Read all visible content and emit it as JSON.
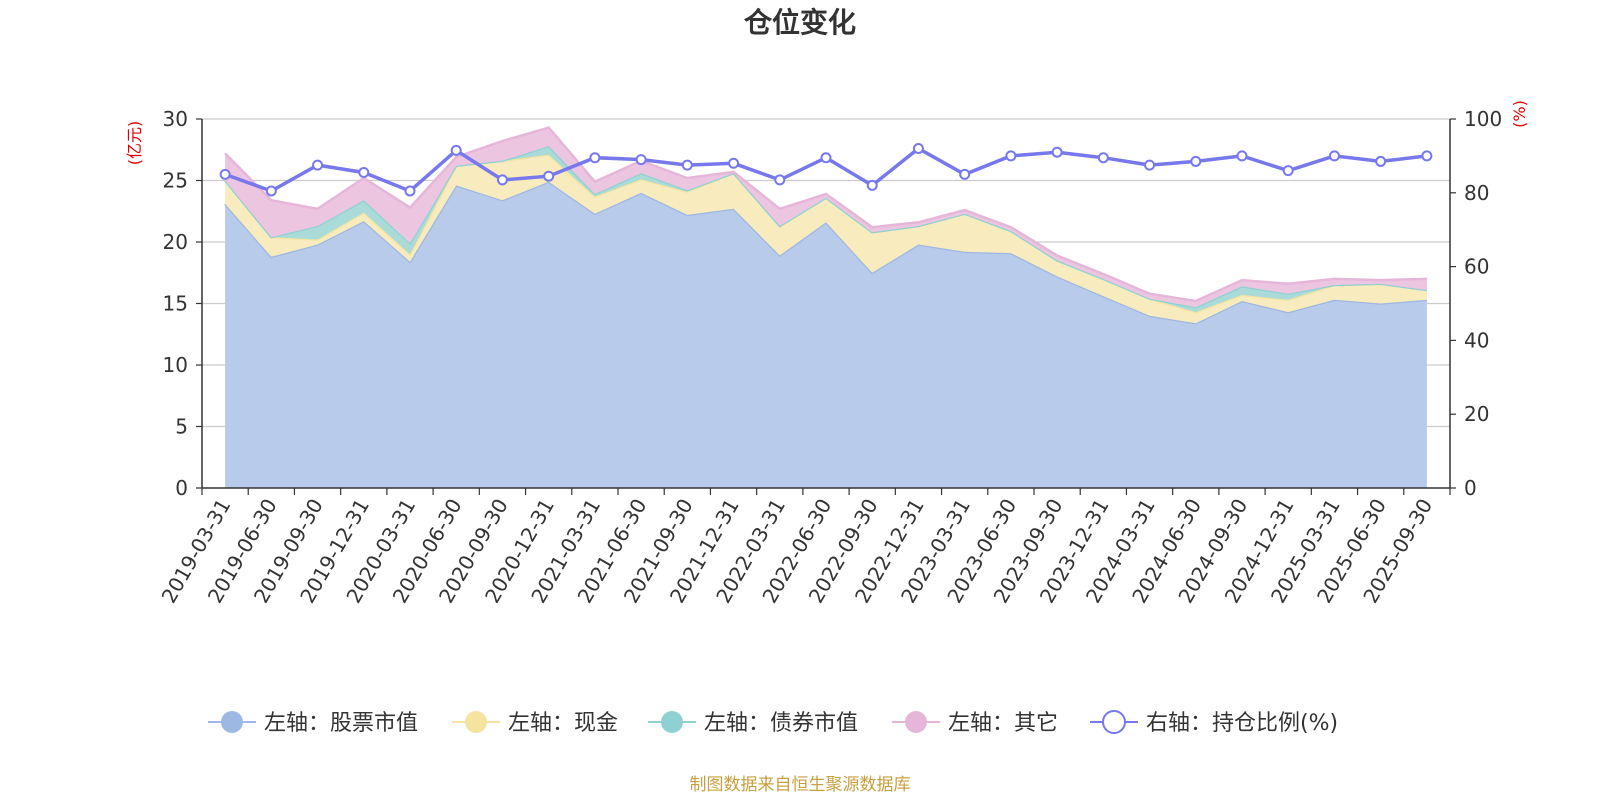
{
  "chart_data": {
    "type": "area",
    "title": "仓位变化",
    "source_note": "制图数据来自恒生聚源数据库",
    "left_axis": {
      "unit": "(亿元)",
      "ticks": [
        "0",
        "5",
        "10",
        "15",
        "20",
        "25",
        "30"
      ],
      "range": [
        0,
        30
      ]
    },
    "right_axis": {
      "unit": "(%)",
      "ticks": [
        "0",
        "20",
        "40",
        "60",
        "80",
        "100"
      ],
      "range": [
        0,
        100
      ]
    },
    "categories": [
      "2019-03-31",
      "2019-06-30",
      "2019-09-30",
      "2019-12-31",
      "2020-03-31",
      "2020-06-30",
      "2020-09-30",
      "2020-12-31",
      "2021-03-31",
      "2021-06-30",
      "2021-09-30",
      "2021-12-31",
      "2022-03-31",
      "2022-06-30",
      "2022-09-30",
      "2022-12-31",
      "2023-03-31",
      "2023-06-30",
      "2023-09-30",
      "2023-12-31",
      "2024-03-31",
      "2024-06-30",
      "2024-09-30",
      "2024-12-31",
      "2025-03-31",
      "2025-06-30",
      "2025-09-30"
    ],
    "series": [
      {
        "name": "左轴：股票市值",
        "axis": "left",
        "color": "#9db8e2",
        "fill": "#b9cbea",
        "values": [
          23.1,
          18.8,
          19.8,
          21.7,
          18.4,
          24.6,
          23.4,
          24.9,
          22.3,
          24.0,
          22.2,
          22.7,
          18.9,
          21.6,
          17.5,
          19.8,
          19.2,
          19.1,
          17.2,
          15.6,
          14.0,
          13.4,
          15.2,
          14.3,
          15.3,
          15.0,
          15.3
        ]
      },
      {
        "name": "左轴：现金",
        "axis": "left",
        "color": "#f5e3a0",
        "fill": "#f8ebbd",
        "values": [
          1.9,
          1.6,
          0.4,
          0.7,
          0.6,
          1.6,
          3.2,
          2.2,
          1.4,
          1.1,
          1.9,
          2.9,
          2.4,
          2.0,
          3.3,
          1.5,
          3.1,
          1.8,
          1.3,
          1.4,
          1.4,
          0.9,
          0.5,
          1.0,
          1.2,
          1.6,
          0.8
        ]
      },
      {
        "name": "左轴：债券市值",
        "axis": "left",
        "color": "#8fd1d3",
        "fill": "#aadbd9",
        "values": [
          0.0,
          0.0,
          1.1,
          1.0,
          0.9,
          0.0,
          0.0,
          0.7,
          0.2,
          0.5,
          0.1,
          0.0,
          0.0,
          0.0,
          0.0,
          0.0,
          0.0,
          0.0,
          0.0,
          0.0,
          0.0,
          0.4,
          0.7,
          0.5,
          0.0,
          0.0,
          0.0
        ]
      },
      {
        "name": "左轴：其它",
        "axis": "left",
        "color": "#e6b6d9",
        "fill": "#ecc6e1",
        "values": [
          2.2,
          3.0,
          1.4,
          1.8,
          2.9,
          0.7,
          1.6,
          1.5,
          1.0,
          1.0,
          1.0,
          0.1,
          1.4,
          0.3,
          0.4,
          0.3,
          0.3,
          0.3,
          0.4,
          0.4,
          0.4,
          0.5,
          0.5,
          0.8,
          0.5,
          0.3,
          0.9
        ]
      },
      {
        "name": "右轴：持仓比例(%)",
        "axis": "right",
        "color": "#7777ee",
        "values": [
          85,
          80.5,
          87.5,
          85.5,
          80.5,
          91.5,
          83.5,
          84.5,
          89.5,
          89,
          87.5,
          88,
          83.5,
          89.5,
          82,
          92,
          85,
          90,
          91,
          89.5,
          87.5,
          88.5,
          90,
          86,
          90,
          88.5,
          90
        ]
      }
    ]
  }
}
